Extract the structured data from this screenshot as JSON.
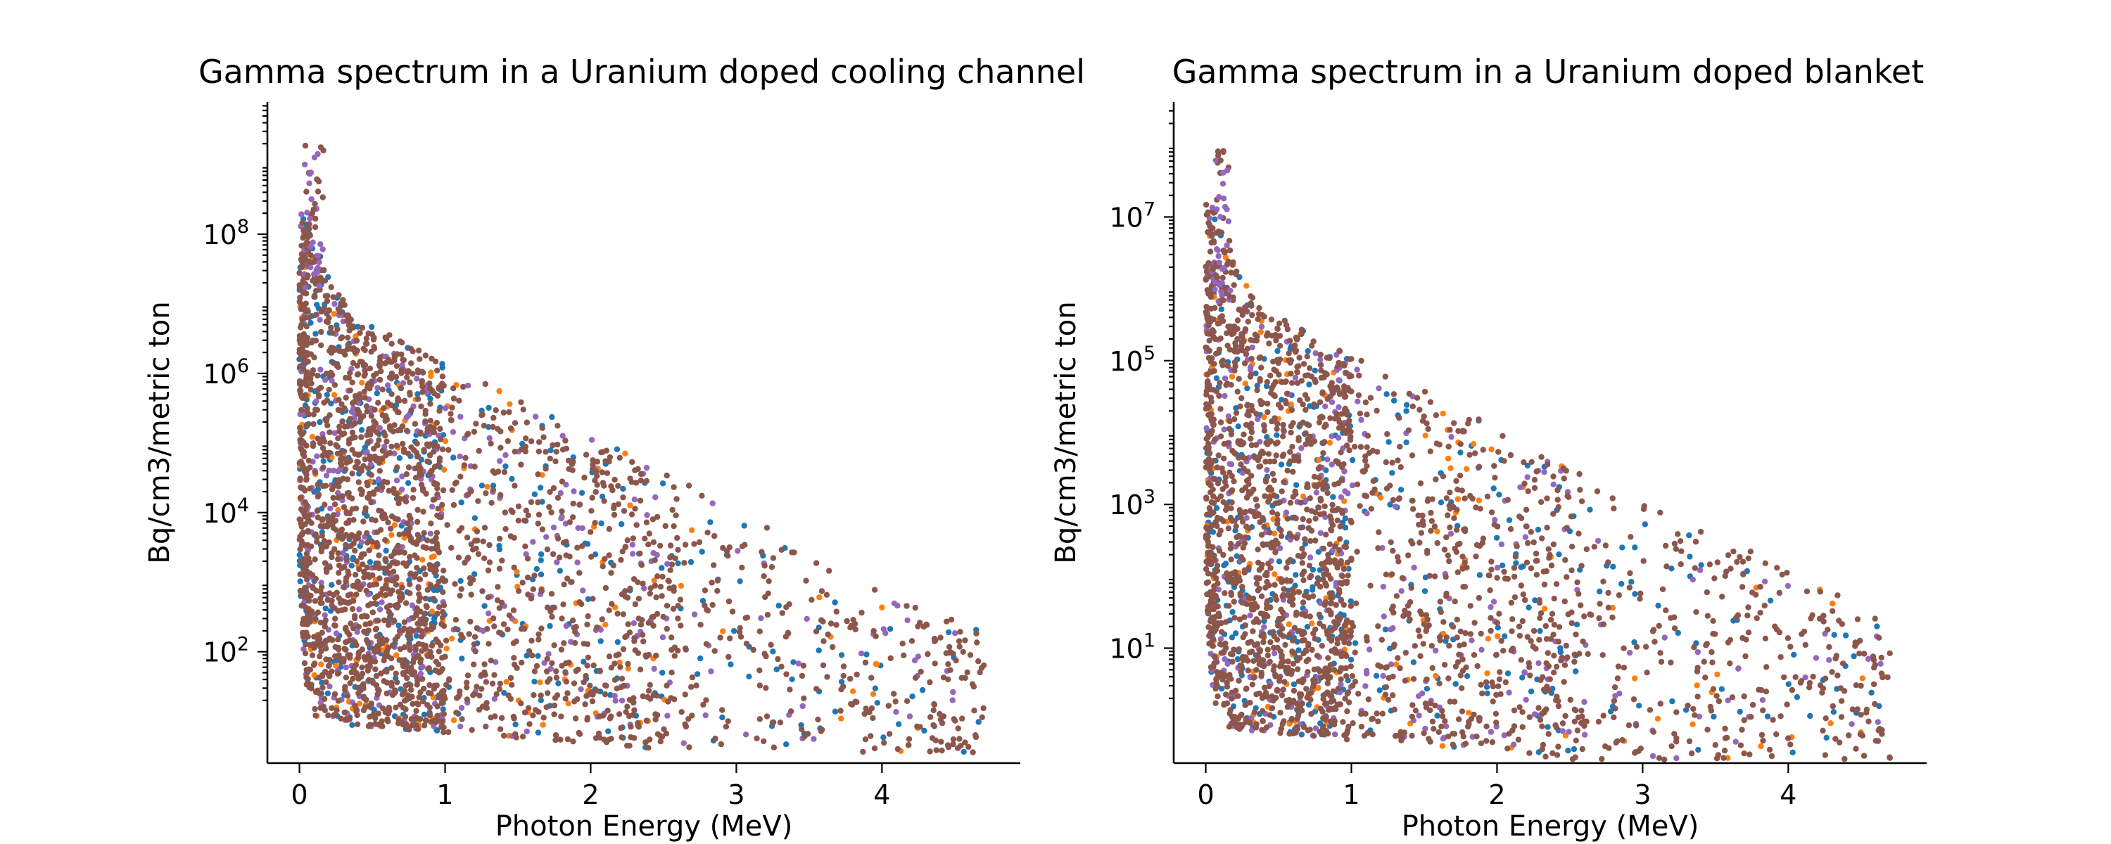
{
  "chart_data": [
    {
      "type": "scatter",
      "title": "Gamma spectrum in a Uranium doped cooling channel",
      "xlabel": "Photon Energy (MeV)",
      "ylabel": "Bq/cm3/metric ton",
      "xlim": [
        -0.22,
        4.95
      ],
      "ylim_log10": [
        0.4,
        9.9
      ],
      "yscale": "log",
      "xticks": [
        0,
        1,
        2,
        3,
        4
      ],
      "yticks_exp": [
        2,
        4,
        6,
        8
      ],
      "grid": false,
      "legend": "none",
      "floor": {
        "amin": 1.0,
        "bmin": 0.55,
        "emax": 2.8
      },
      "envelope": {
        "lo_top": 7.2,
        "hi_top": 8.6,
        "decay": 1.05
      },
      "spike": {
        "e": 0.1,
        "a": 9.3
      },
      "series": [
        {
          "color": "#1f77b4",
          "count": 420
        },
        {
          "color": "#ff7f0e",
          "count": 160
        },
        {
          "color": "#9467bd",
          "count": 360
        },
        {
          "color": "#8c564b",
          "count": 2200
        }
      ]
    },
    {
      "type": "scatter",
      "title": "Gamma spectrum in a Uranium doped blanket",
      "xlabel": "Photon Energy (MeV)",
      "ylabel": "Bq/cm3/metric ton",
      "xlim": [
        -0.22,
        4.95
      ],
      "ylim_log10": [
        -0.6,
        8.6
      ],
      "yscale": "log",
      "xticks": [
        0,
        1,
        2,
        3,
        4
      ],
      "yticks_exp": [
        1,
        3,
        5,
        7
      ],
      "grid": false,
      "legend": "none",
      "floor": {
        "amin": -0.1,
        "bmin": -0.55,
        "emax": 2.55
      },
      "envelope": {
        "lo_top": 6.1,
        "hi_top": 7.5,
        "decay": 1.0
      },
      "spike": {
        "e": 0.1,
        "a": 8.0
      },
      "series": [
        {
          "color": "#1f77b4",
          "count": 380
        },
        {
          "color": "#ff7f0e",
          "count": 150
        },
        {
          "color": "#9467bd",
          "count": 320
        },
        {
          "color": "#8c564b",
          "count": 2100
        }
      ]
    }
  ]
}
